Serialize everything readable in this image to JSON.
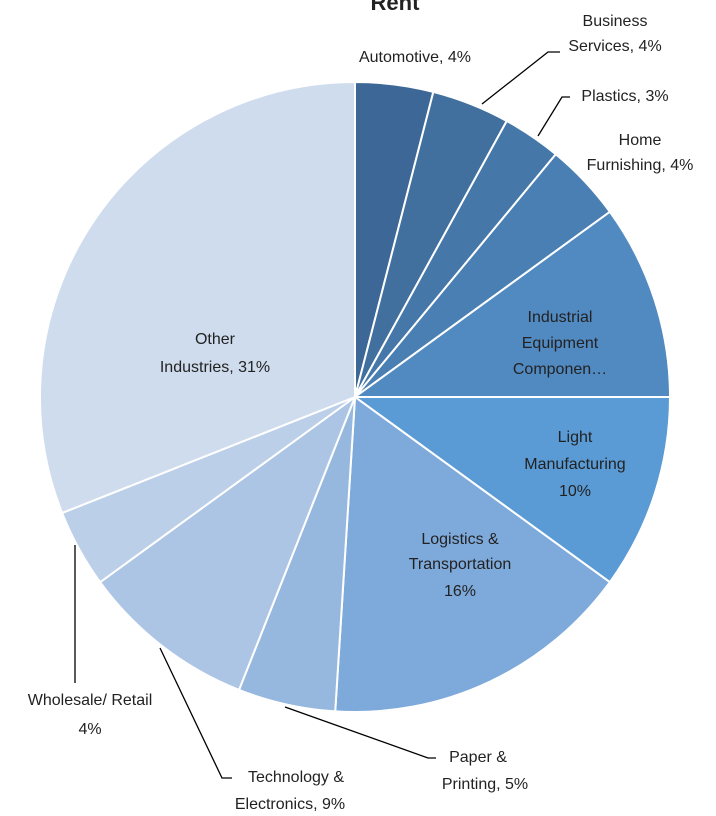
{
  "chart_data": {
    "type": "pie",
    "title": "Rent",
    "categories": [
      "Automotive",
      "Business Services",
      "Plastics",
      "Home Furnishing",
      "Industrial Equipment Componen…",
      "Light Manufacturing",
      "Logistics & Transportation",
      "Paper & Printing",
      "Technology & Electronics",
      "Wholesale/ Retail",
      "Other Industries"
    ],
    "values": [
      4,
      4,
      3,
      4,
      10,
      10,
      16,
      5,
      9,
      4,
      31
    ],
    "labels": [
      [
        "Automotive, 4%"
      ],
      [
        "Business",
        "Services, 4%"
      ],
      [
        "Plastics, 3%"
      ],
      [
        "Home",
        "Furnishing, 4%"
      ],
      [
        "Industrial",
        "Equipment",
        "Componen…"
      ],
      [
        "Light",
        "Manufacturing",
        "10%"
      ],
      [
        "Logistics &",
        "Transportation",
        "16%"
      ],
      [
        "Paper &",
        "Printing, 5%"
      ],
      [
        "Technology &",
        "Electronics, 9%"
      ],
      [
        "Wholesale/ Retail",
        "4%"
      ],
      [
        "Other",
        "Industries, 31%"
      ]
    ],
    "colors": [
      "#3d6796",
      "#41709f",
      "#4577a9",
      "#4a7fb4",
      "#5189c1",
      "#5a9bd5",
      "#7eaadb",
      "#97b8de",
      "#acc5e5",
      "#bccfe9",
      "#cfdcee"
    ]
  }
}
